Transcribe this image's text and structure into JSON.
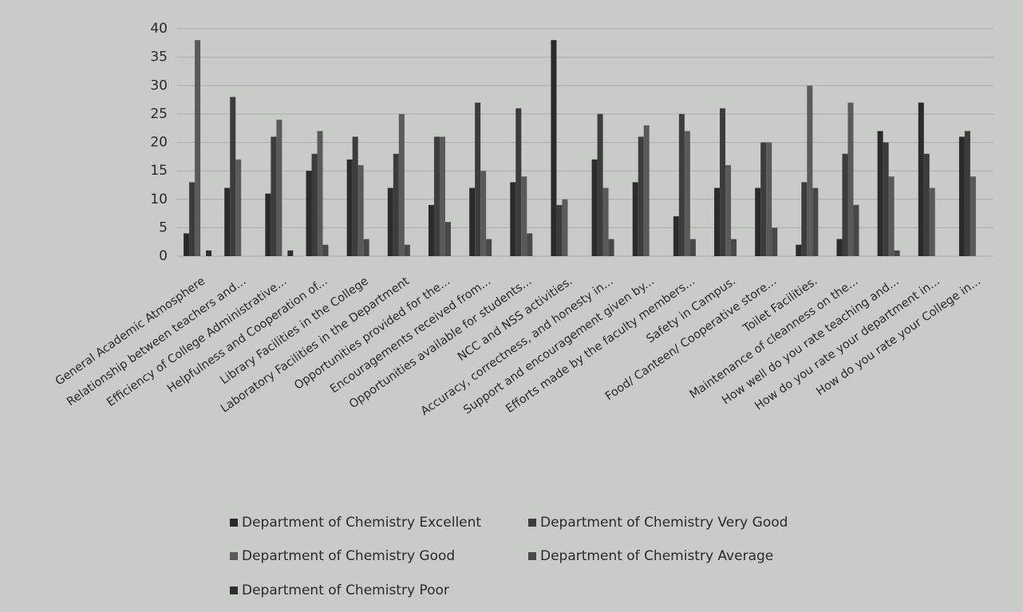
{
  "chart_data": {
    "type": "bar",
    "categories": [
      "General Academic Atmosphere",
      "Relationship between teachers and...",
      "Efficiency of College Administrative...",
      "Helpfulness and Cooperation of...",
      "Library Facilities in the College",
      "Laboratory Facilities in the Department",
      "Opportunities provided for the...",
      "Encouragements received from...",
      "Opportunities available for students...",
      "NCC and NSS activities.",
      "Accuracy, correctness, and honesty in...",
      "Support and encouragement given by...",
      "Efforts made by the faculty members...",
      "Safety in Campus.",
      "Food/ Canteen/ Cooperative store...",
      "Toilet Facilities.",
      "Maintenance of cleanness on the...",
      "How well do you rate teaching and...",
      "How do you rate your department in...",
      "How do you rate your College in..."
    ],
    "series": [
      {
        "name": "Department of Chemistry Excellent",
        "color": "#2b2b2b",
        "values": [
          4,
          12,
          11,
          15,
          17,
          12,
          9,
          12,
          13,
          38,
          17,
          13,
          7,
          12,
          12,
          2,
          3,
          22,
          27,
          21
        ]
      },
      {
        "name": "Department of Chemistry Very Good",
        "color": "#3c3c3c",
        "values": [
          13,
          28,
          21,
          18,
          21,
          18,
          21,
          27,
          26,
          9,
          25,
          21,
          25,
          26,
          20,
          13,
          18,
          20,
          18,
          22
        ]
      },
      {
        "name": "Department of Chemistry Good",
        "color": "#5a5a5a",
        "values": [
          38,
          17,
          24,
          22,
          16,
          25,
          21,
          15,
          14,
          10,
          12,
          23,
          22,
          16,
          20,
          30,
          27,
          14,
          12,
          14
        ]
      },
      {
        "name": "Department of Chemistry Average",
        "color": "#484848",
        "values": [
          0,
          0,
          0,
          2,
          3,
          2,
          6,
          3,
          4,
          0,
          3,
          0,
          3,
          3,
          5,
          12,
          9,
          1,
          0,
          0
        ]
      },
      {
        "name": "Department of Chemistry Poor",
        "color": "#2f2f2f",
        "values": [
          1,
          0,
          1,
          0,
          0,
          0,
          0,
          0,
          0,
          0,
          0,
          0,
          0,
          0,
          0,
          0,
          0,
          0,
          0,
          0
        ]
      }
    ],
    "ylim": [
      0,
      40
    ],
    "yticks": [
      0,
      5,
      10,
      15,
      20,
      25,
      30,
      35,
      40
    ],
    "grid": true,
    "legend": "bottom"
  }
}
